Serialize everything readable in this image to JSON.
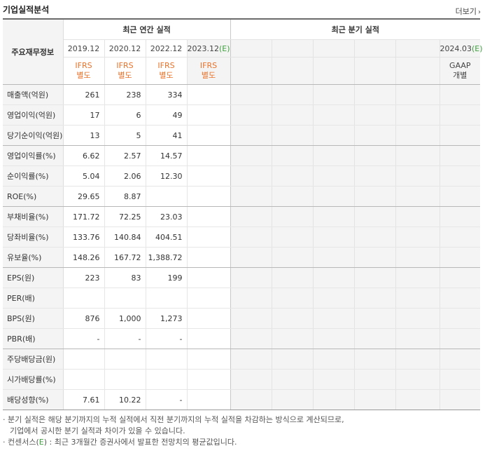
{
  "header": {
    "title": "기업실적분석",
    "more": "더보기",
    "more_icon": "chevron-right"
  },
  "table": {
    "row_header_label": "주요재무정보",
    "annual_label": "최근 연간 실적",
    "quarter_label": "최근 분기 실적",
    "annual_periods": [
      {
        "period": "2019.12",
        "std1": "IFRS",
        "std2": "별도",
        "estimate": ""
      },
      {
        "period": "2020.12",
        "std1": "IFRS",
        "std2": "별도",
        "estimate": ""
      },
      {
        "period": "2022.12",
        "std1": "IFRS",
        "std2": "별도",
        "estimate": ""
      },
      {
        "period": "2023.12",
        "std1": "IFRS",
        "std2": "별도",
        "estimate": "(E)"
      }
    ],
    "quarter_periods": [
      {
        "period": "",
        "std1": "",
        "std2": ""
      },
      {
        "period": "",
        "std1": "",
        "std2": ""
      },
      {
        "period": "",
        "std1": "",
        "std2": ""
      },
      {
        "period": "",
        "std1": "",
        "std2": ""
      },
      {
        "period": "",
        "std1": "",
        "std2": ""
      },
      {
        "period": "2024.03",
        "estimate": "(E)",
        "std1": "GAAP",
        "std2": "개별"
      }
    ],
    "rows": [
      {
        "label": "매출액(억원)",
        "values": [
          "261",
          "238",
          "334",
          ""
        ],
        "group_end": false
      },
      {
        "label": "영업이익(억원)",
        "values": [
          "17",
          "6",
          "49",
          ""
        ],
        "group_end": false
      },
      {
        "label": "당기순이익(억원)",
        "values": [
          "13",
          "5",
          "41",
          ""
        ],
        "group_end": true
      },
      {
        "label": "영업이익률(%)",
        "values": [
          "6.62",
          "2.57",
          "14.57",
          ""
        ],
        "group_end": false
      },
      {
        "label": "순이익률(%)",
        "values": [
          "5.04",
          "2.06",
          "12.30",
          ""
        ],
        "group_end": false
      },
      {
        "label": "ROE(%)",
        "values": [
          "29.65",
          "8.87",
          "",
          ""
        ],
        "group_end": true
      },
      {
        "label": "부채비율(%)",
        "values": [
          "171.72",
          "72.25",
          "23.03",
          ""
        ],
        "group_end": false
      },
      {
        "label": "당좌비율(%)",
        "values": [
          "133.76",
          "140.84",
          "404.51",
          ""
        ],
        "group_end": false
      },
      {
        "label": "유보율(%)",
        "values": [
          "148.26",
          "167.72",
          "1,388.72",
          ""
        ],
        "group_end": true
      },
      {
        "label": "EPS(원)",
        "values": [
          "223",
          "83",
          "199",
          ""
        ],
        "group_end": false
      },
      {
        "label": "PER(배)",
        "values": [
          "",
          "",
          "",
          ""
        ],
        "group_end": false
      },
      {
        "label": "BPS(원)",
        "values": [
          "876",
          "1,000",
          "1,273",
          ""
        ],
        "group_end": false
      },
      {
        "label": "PBR(배)",
        "values": [
          "-",
          "-",
          "-",
          ""
        ],
        "group_end": true
      },
      {
        "label": "주당배당금(원)",
        "values": [
          "",
          "",
          "",
          ""
        ],
        "group_end": false
      },
      {
        "label": "시가배당률(%)",
        "values": [
          "",
          "",
          "",
          ""
        ],
        "group_end": false
      },
      {
        "label": "배당성향(%)",
        "values": [
          "7.61",
          "10.22",
          "-",
          ""
        ],
        "group_end": false
      }
    ]
  },
  "notes": {
    "line1": "· 분기 실적은 해당 분기까지의 누적 실적에서 직전 분기까지의 누적 실적을 차감하는 방식으로 계산되므로,",
    "line1b": "기업에서 공시한 분기 실적과 차이가 있을 수 있습니다.",
    "line2_prefix": "· 컨센서스(",
    "line2_e": "E",
    "line2_suffix": ") : 최근 3개월간 증권사에서 발표한 전망치의 평균값입니다."
  }
}
